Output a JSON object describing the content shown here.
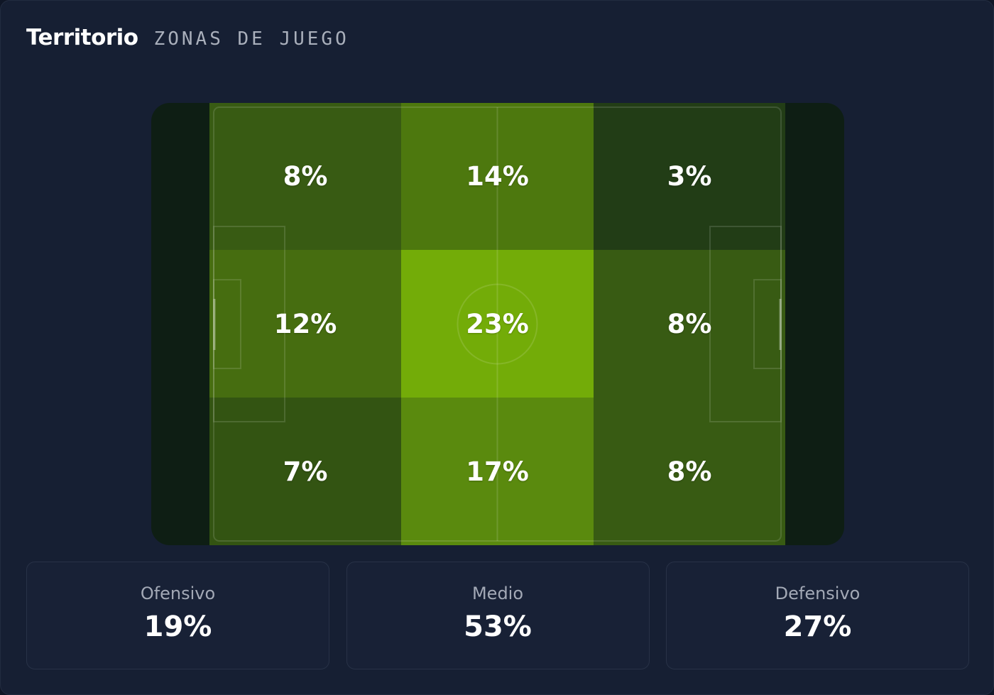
{
  "header": {
    "title": "Territorio",
    "subtitle": "ZONAS DE JUEGO"
  },
  "zones": [
    {
      "label": "8%",
      "value": 8,
      "color": "#385b13"
    },
    {
      "label": "14%",
      "value": 14,
      "color": "#4d780e"
    },
    {
      "label": "3%",
      "value": 3,
      "color": "#223d16"
    },
    {
      "label": "12%",
      "value": 12,
      "color": "#466d10"
    },
    {
      "label": "23%",
      "value": 23,
      "color": "#73ac08"
    },
    {
      "label": "8%",
      "value": 8,
      "color": "#385b13"
    },
    {
      "label": "7%",
      "value": 7,
      "color": "#335412"
    },
    {
      "label": "17%",
      "value": 17,
      "color": "#5a8a0e"
    },
    {
      "label": "8%",
      "value": 8,
      "color": "#385b13"
    }
  ],
  "summary": [
    {
      "label": "Ofensivo",
      "value": "19%"
    },
    {
      "label": "Medio",
      "value": "53%"
    },
    {
      "label": "Defensivo",
      "value": "27%"
    }
  ],
  "colors": {
    "background": "#161f33",
    "pitch_outer": "#0e1e14",
    "accent_green": "#73ac08"
  }
}
